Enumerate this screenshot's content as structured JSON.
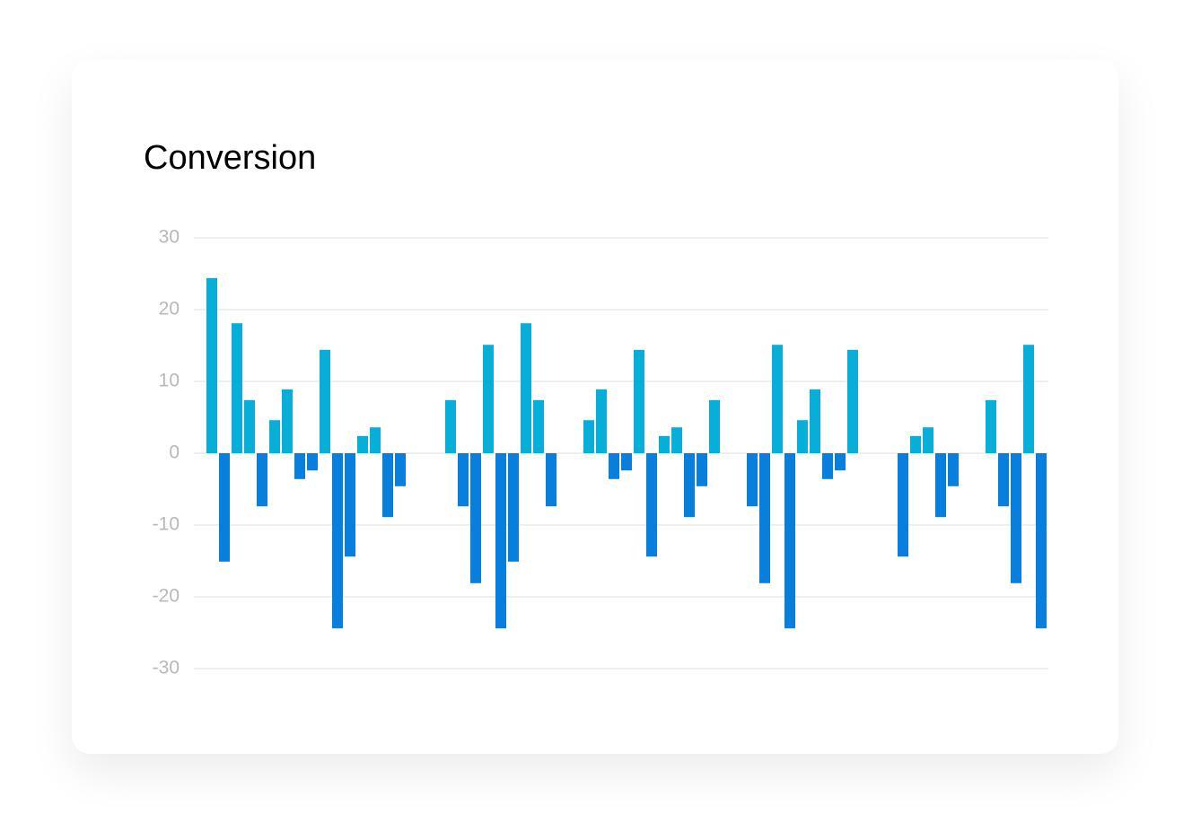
{
  "chart_data": {
    "type": "bar",
    "title": "Conversion",
    "values": [
      24.4,
      -15.1,
      18.1,
      7.4,
      -7.4,
      4.6,
      8.9,
      -3.6,
      -2.4,
      14.4,
      -24.4,
      -14.4,
      2.4,
      3.6,
      -8.9,
      -4.6,
      0,
      0,
      0,
      7.4,
      -7.4,
      -18.1,
      15.1,
      -24.4,
      -15.1,
      18.1,
      7.4,
      -7.4,
      0,
      0,
      4.6,
      8.9,
      -3.6,
      -2.4,
      14.4,
      -14.4,
      2.4,
      3.6,
      -8.9,
      -4.6,
      7.4,
      0,
      0,
      -7.4,
      -18.1,
      15.1,
      -24.4,
      4.6,
      8.9,
      -3.6,
      -2.4,
      14.4,
      0,
      0,
      0,
      -14.4,
      2.4,
      3.6,
      -8.9,
      -4.6,
      0,
      0,
      7.4,
      -7.4,
      -18.1,
      15.1,
      -24.4
    ],
    "positive_color": "#06aed8",
    "negative_color": "#087fdc",
    "ylim": [
      -30,
      30
    ],
    "yticks": [
      -30,
      -20,
      -10,
      0,
      10,
      20,
      30
    ],
    "grid": true
  }
}
